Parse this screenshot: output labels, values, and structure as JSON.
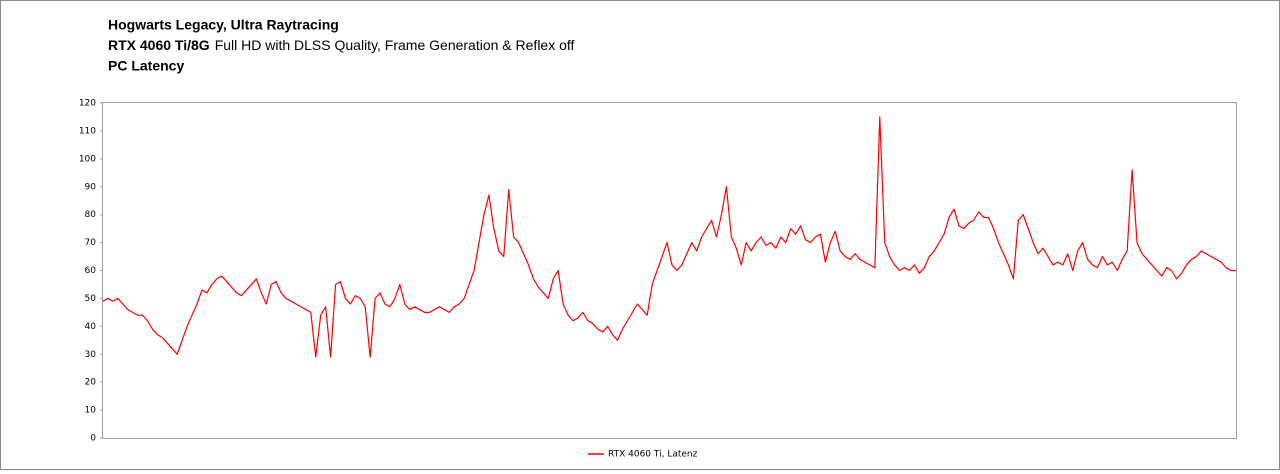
{
  "chart_data": {
    "type": "line",
    "title": "Hogwarts Legacy, Ultra Raytracing",
    "subtitle_bold": "RTX 4060 Ti/8G",
    "subtitle": "Full HD with DLSS Quality, Frame Generation & Reflex off",
    "metric": "PC Latency",
    "metric_color": "#ff0000",
    "ylim": [
      0,
      120
    ],
    "yticks": [
      0,
      10,
      20,
      30,
      40,
      50,
      60,
      70,
      80,
      90,
      100,
      110,
      120
    ],
    "grid": false,
    "legend": "bottom",
    "series": [
      {
        "name": "RTX 4060 Ti, Latenz",
        "color": "#ff0000",
        "values": [
          49,
          50,
          49,
          50,
          48,
          46,
          45,
          44,
          44,
          42,
          39,
          37,
          36,
          34,
          32,
          30,
          35,
          40,
          44,
          48,
          53,
          52,
          55,
          57,
          58,
          56,
          54,
          52,
          51,
          53,
          55,
          57,
          52,
          48,
          55,
          56,
          52,
          50,
          49,
          48,
          47,
          46,
          45,
          29,
          44,
          47,
          29,
          55,
          56,
          50,
          48,
          51,
          50,
          47,
          29,
          50,
          52,
          48,
          47,
          50,
          55,
          48,
          46,
          47,
          46,
          45,
          45,
          46,
          47,
          46,
          45,
          47,
          48,
          50,
          55,
          60,
          70,
          80,
          87,
          75,
          67,
          65,
          89,
          72,
          70,
          66,
          62,
          57,
          54,
          52,
          50,
          57,
          60,
          48,
          44,
          42,
          43,
          45,
          42,
          41,
          39,
          38,
          40,
          37,
          35,
          39,
          42,
          45,
          48,
          46,
          44,
          55,
          60,
          65,
          70,
          62,
          60,
          62,
          66,
          70,
          67,
          72,
          75,
          78,
          72,
          80,
          90,
          72,
          68,
          62,
          70,
          67,
          70,
          72,
          69,
          70,
          68,
          72,
          70,
          75,
          73,
          76,
          71,
          70,
          72,
          73,
          63,
          70,
          74,
          67,
          65,
          64,
          66,
          64,
          63,
          62,
          61,
          115,
          70,
          65,
          62,
          60,
          61,
          60,
          62,
          59,
          61,
          65,
          67,
          70,
          73,
          79,
          82,
          76,
          75,
          77,
          78,
          81,
          79,
          79,
          75,
          70,
          66,
          62,
          57,
          78,
          80,
          75,
          70,
          66,
          68,
          65,
          62,
          63,
          62,
          66,
          60,
          67,
          70,
          64,
          62,
          61,
          65,
          62,
          63,
          60,
          64,
          67,
          96,
          70,
          66,
          64,
          62,
          60,
          58,
          61,
          60,
          57,
          59,
          62,
          64,
          65,
          67,
          66,
          65,
          64,
          63,
          61,
          60,
          60
        ]
      }
    ]
  }
}
